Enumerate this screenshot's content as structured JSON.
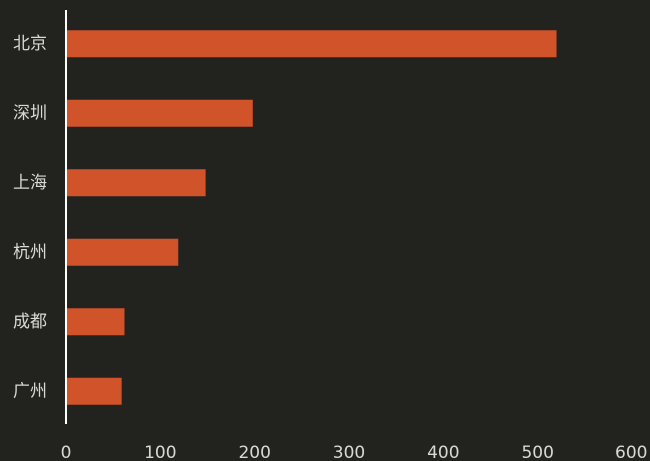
{
  "chart_data": {
    "type": "bar",
    "orientation": "horizontal",
    "categories": [
      "北京",
      "深圳",
      "上海",
      "杭州",
      "成都",
      "广州"
    ],
    "values": [
      520,
      198,
      148,
      119,
      62,
      59
    ],
    "xlim": [
      0,
      600
    ],
    "xticks": [
      "0",
      "100",
      "200",
      "300",
      "400",
      "500",
      "600"
    ],
    "title": "",
    "xlabel": "",
    "ylabel": "",
    "grid": false,
    "legend": "none",
    "colors": {
      "background": "#22221e",
      "bar": "#d0532a",
      "axis": "#ffffff",
      "text": "#d9d9d4"
    }
  }
}
